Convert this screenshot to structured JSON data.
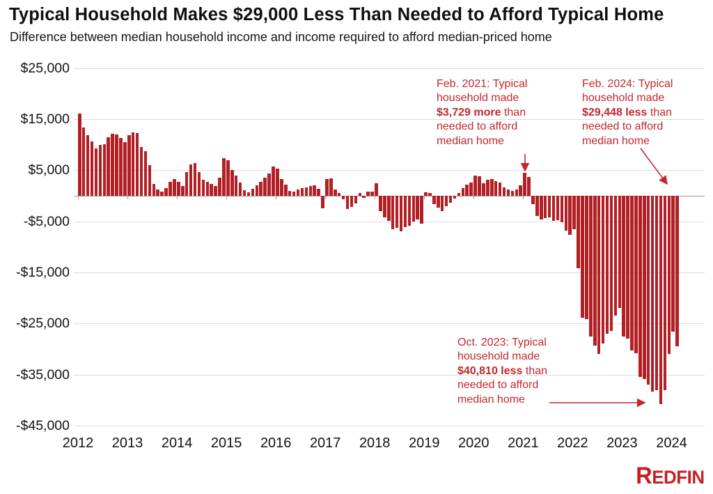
{
  "colors": {
    "bar": "#b21f24",
    "annotation": "#c2272d",
    "logo": "#c42127",
    "grid": "#dcdcdc",
    "axis": "#9b9b9b",
    "text": "#111111"
  },
  "footer": {
    "logo": "REDFIN"
  },
  "chart_data": {
    "type": "bar",
    "title": "Typical Household Makes $29,000 Less Than Needed to Afford Typical Home",
    "subtitle": "Difference between median household income and income required to afford median-priced home",
    "x_start": "2012-01",
    "x_end": "2024-02",
    "x_axis": {
      "ticks": [
        "2012",
        "2013",
        "2014",
        "2015",
        "2016",
        "2017",
        "2018",
        "2019",
        "2020",
        "2021",
        "2022",
        "2023",
        "2024"
      ]
    },
    "y_axis": {
      "ticks": [
        {
          "label": "$25,000",
          "value": 25000
        },
        {
          "label": "$15,000",
          "value": 15000
        },
        {
          "label": "$5,000",
          "value": 5000
        },
        {
          "label": "-$5,000",
          "value": -5000
        },
        {
          "label": "-$15,000",
          "value": -15000
        },
        {
          "label": "-$25,000",
          "value": -25000
        },
        {
          "label": "-$35,000",
          "value": -35000
        },
        {
          "label": "-$45,000",
          "value": -45000
        }
      ],
      "ylim": [
        -45000,
        25000
      ]
    },
    "grid": true,
    "values": [
      16150,
      13400,
      11900,
      10700,
      9300,
      10000,
      10150,
      11400,
      12200,
      12000,
      11350,
      10500,
      11900,
      12400,
      12250,
      9500,
      8700,
      6000,
      2300,
      1200,
      800,
      1550,
      2800,
      3300,
      2700,
      1900,
      4700,
      6200,
      6400,
      4700,
      3100,
      2700,
      2300,
      1900,
      3600,
      7400,
      6900,
      5100,
      3900,
      2600,
      1100,
      700,
      1400,
      2100,
      2700,
      3600,
      4400,
      5800,
      5300,
      3300,
      2200,
      1000,
      800,
      1300,
      1500,
      1700,
      1900,
      2000,
      1400,
      -2500,
      3300,
      3400,
      1300,
      600,
      -700,
      -2600,
      -2200,
      -1500,
      600,
      -400,
      800,
      800,
      2500,
      -3000,
      -4200,
      -4900,
      -6500,
      -6300,
      -7000,
      -6100,
      -5800,
      -5100,
      -4600,
      -5400,
      700,
      500,
      -1600,
      -2300,
      -3000,
      -2100,
      -1400,
      -600,
      500,
      1500,
      2200,
      2600,
      4000,
      3800,
      2400,
      3100,
      3300,
      2900,
      2600,
      1700,
      1200,
      900,
      1200,
      2100,
      4450,
      3729,
      -1600,
      -3900,
      -4600,
      -4400,
      -4200,
      -4900,
      -4700,
      -5200,
      -6800,
      -7700,
      -6500,
      -14200,
      -23800,
      -24200,
      -27500,
      -29300,
      -31000,
      -28900,
      -27000,
      -26500,
      -23500,
      -22000,
      -27600,
      -28000,
      -30300,
      -30800,
      -35500,
      -35900,
      -36900,
      -38300,
      -38000,
      -40810,
      -38000,
      -31000,
      -26600,
      -29448
    ],
    "annotations": [
      {
        "id": "feb-2021",
        "pre": "Feb. 2021: Typical household made ",
        "bold": "$3,729 more",
        "post": " than needed to afford median home"
      },
      {
        "id": "feb-2024",
        "pre": "Feb. 2024: Typical household made ",
        "bold": "$29,448 less",
        "post": " than needed to afford median home"
      },
      {
        "id": "oct-2023",
        "pre": "Oct. 2023: Typical household made ",
        "bold": "$40,810 less",
        "post": " than needed to afford median home"
      }
    ]
  }
}
